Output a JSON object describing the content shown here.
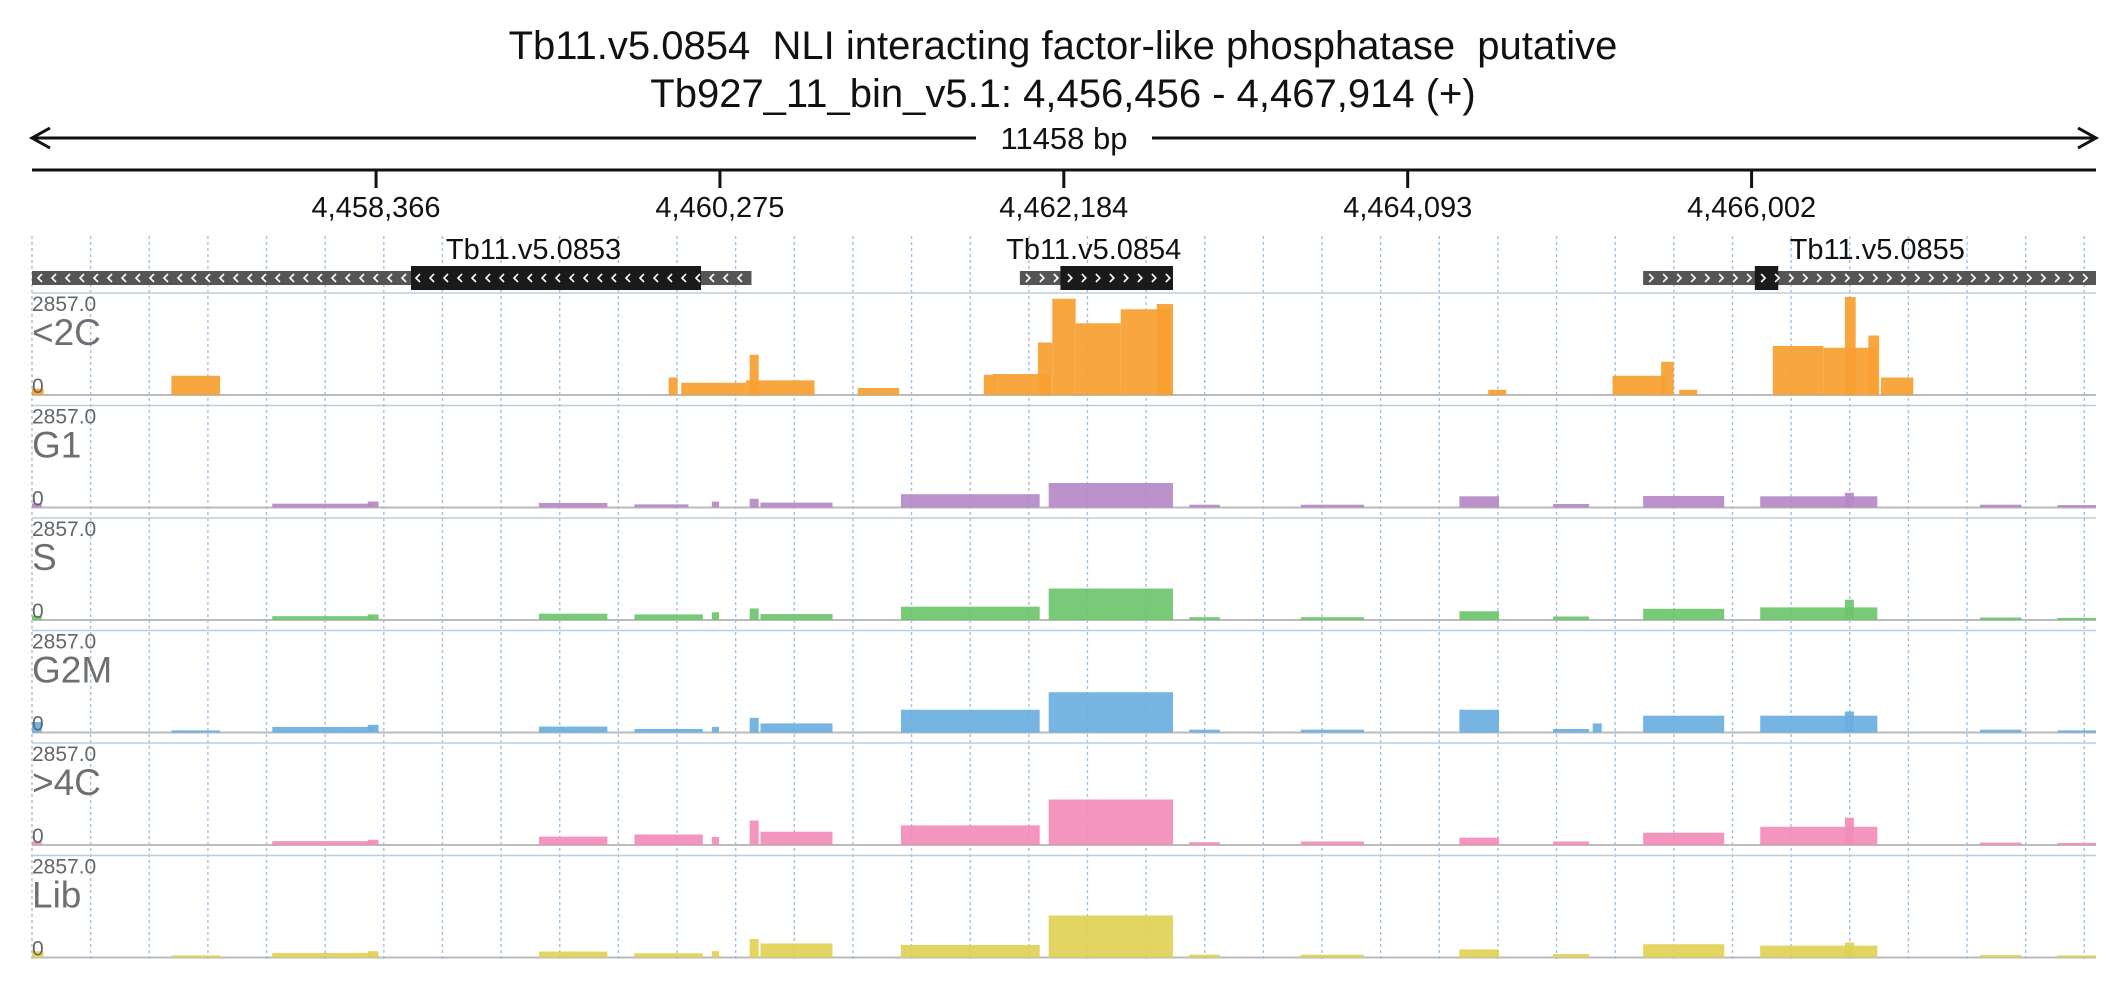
{
  "header": {
    "title": "Tb11.v5.0854  NLI interacting factor-like phosphatase  putative",
    "locus": "Tb927_11_bin_v5.1: 4,456,456 - 4,467,914 (+)",
    "span_label": "11458 bp"
  },
  "chart_data": {
    "type": "area",
    "region": {
      "start": 4456456,
      "end": 4467914
    },
    "ticks": [
      {
        "pos": 4458366,
        "label": "4,458,366"
      },
      {
        "pos": 4460275,
        "label": "4,460,275"
      },
      {
        "pos": 4462184,
        "label": "4,462,184"
      },
      {
        "pos": 4464093,
        "label": "4,464,093"
      },
      {
        "pos": 4466002,
        "label": "4,466,002"
      }
    ],
    "genes": [
      {
        "name": "Tb11.v5.0853",
        "strand": "-",
        "start": 4456456,
        "end": 4460450,
        "cds_start": 4458560,
        "cds_end": 4460170
      },
      {
        "name": "Tb11.v5.0854",
        "strand": "+",
        "start": 4461940,
        "end": 4462790,
        "cds_start": 4462165,
        "cds_end": 4462790
      },
      {
        "name": "Tb11.v5.0855",
        "strand": "+",
        "start": 4465400,
        "end": 4467914,
        "cds_start": 4466020,
        "cds_end": 4466150
      }
    ],
    "tracks": [
      {
        "name": "<2C",
        "max_label": "2857.0",
        "zero_label": "0",
        "max": 2857.0,
        "color": "#f7a030",
        "peaks": [
          {
            "start": 4456456,
            "end": 4456520,
            "value": 180
          },
          {
            "start": 4457230,
            "end": 4457500,
            "value": 550
          },
          {
            "start": 4459990,
            "end": 4460040,
            "value": 500
          },
          {
            "start": 4460060,
            "end": 4460420,
            "value": 350
          },
          {
            "start": 4460420,
            "end": 4460800,
            "value": 420
          },
          {
            "start": 4460440,
            "end": 4460490,
            "value": 1150
          },
          {
            "start": 4461040,
            "end": 4461270,
            "value": 200
          },
          {
            "start": 4461740,
            "end": 4461800,
            "value": 580
          },
          {
            "start": 4461790,
            "end": 4462110,
            "value": 600
          },
          {
            "start": 4462040,
            "end": 4462120,
            "value": 1500
          },
          {
            "start": 4462120,
            "end": 4462250,
            "value": 2750
          },
          {
            "start": 4462250,
            "end": 4462500,
            "value": 2050
          },
          {
            "start": 4462500,
            "end": 4462780,
            "value": 2450
          },
          {
            "start": 4462700,
            "end": 4462790,
            "value": 2600
          },
          {
            "start": 4464540,
            "end": 4464640,
            "value": 150
          },
          {
            "start": 4465230,
            "end": 4465520,
            "value": 550
          },
          {
            "start": 4465500,
            "end": 4465570,
            "value": 950
          },
          {
            "start": 4465600,
            "end": 4465700,
            "value": 150
          },
          {
            "start": 4466120,
            "end": 4466400,
            "value": 1400
          },
          {
            "start": 4466400,
            "end": 4466700,
            "value": 1350
          },
          {
            "start": 4466520,
            "end": 4466580,
            "value": 2800
          },
          {
            "start": 4466650,
            "end": 4466710,
            "value": 1700
          },
          {
            "start": 4466720,
            "end": 4466900,
            "value": 500
          }
        ]
      },
      {
        "name": "G1",
        "max_label": "2857.0",
        "zero_label": "0",
        "max": 2857.0,
        "color": "#b589c4",
        "peaks": [
          {
            "start": 4456456,
            "end": 4456510,
            "value": 120
          },
          {
            "start": 4457790,
            "end": 4458350,
            "value": 110
          },
          {
            "start": 4458320,
            "end": 4458380,
            "value": 170
          },
          {
            "start": 4459270,
            "end": 4459650,
            "value": 130
          },
          {
            "start": 4459800,
            "end": 4460100,
            "value": 90
          },
          {
            "start": 4460230,
            "end": 4460270,
            "value": 170
          },
          {
            "start": 4460440,
            "end": 4460490,
            "value": 250
          },
          {
            "start": 4460500,
            "end": 4460900,
            "value": 140
          },
          {
            "start": 4461280,
            "end": 4462050,
            "value": 380
          },
          {
            "start": 4462100,
            "end": 4462790,
            "value": 700
          },
          {
            "start": 4462880,
            "end": 4463050,
            "value": 80
          },
          {
            "start": 4463500,
            "end": 4463850,
            "value": 80
          },
          {
            "start": 4464380,
            "end": 4464600,
            "value": 320
          },
          {
            "start": 4464900,
            "end": 4465100,
            "value": 100
          },
          {
            "start": 4465400,
            "end": 4465850,
            "value": 330
          },
          {
            "start": 4466050,
            "end": 4466700,
            "value": 320
          },
          {
            "start": 4466520,
            "end": 4466570,
            "value": 420
          },
          {
            "start": 4467270,
            "end": 4467500,
            "value": 80
          },
          {
            "start": 4467700,
            "end": 4467914,
            "value": 70
          }
        ]
      },
      {
        "name": "S",
        "max_label": "2857.0",
        "zero_label": "0",
        "max": 2857.0,
        "color": "#6dc46c",
        "peaks": [
          {
            "start": 4456456,
            "end": 4456510,
            "value": 120
          },
          {
            "start": 4457790,
            "end": 4458350,
            "value": 110
          },
          {
            "start": 4458320,
            "end": 4458380,
            "value": 160
          },
          {
            "start": 4459270,
            "end": 4459650,
            "value": 180
          },
          {
            "start": 4459800,
            "end": 4460180,
            "value": 160
          },
          {
            "start": 4460230,
            "end": 4460270,
            "value": 220
          },
          {
            "start": 4460440,
            "end": 4460490,
            "value": 330
          },
          {
            "start": 4460500,
            "end": 4460900,
            "value": 170
          },
          {
            "start": 4461280,
            "end": 4462050,
            "value": 380
          },
          {
            "start": 4462100,
            "end": 4462790,
            "value": 900
          },
          {
            "start": 4462880,
            "end": 4463050,
            "value": 80
          },
          {
            "start": 4463500,
            "end": 4463850,
            "value": 80
          },
          {
            "start": 4464380,
            "end": 4464600,
            "value": 250
          },
          {
            "start": 4464900,
            "end": 4465100,
            "value": 100
          },
          {
            "start": 4465400,
            "end": 4465850,
            "value": 320
          },
          {
            "start": 4466050,
            "end": 4466700,
            "value": 360
          },
          {
            "start": 4466520,
            "end": 4466570,
            "value": 580
          },
          {
            "start": 4467270,
            "end": 4467500,
            "value": 70
          },
          {
            "start": 4467700,
            "end": 4467914,
            "value": 60
          }
        ]
      },
      {
        "name": "G2M",
        "max_label": "2857.0",
        "zero_label": "0",
        "max": 2857.0,
        "color": "#6aaee0",
        "peaks": [
          {
            "start": 4456456,
            "end": 4456510,
            "value": 300
          },
          {
            "start": 4457230,
            "end": 4457500,
            "value": 60
          },
          {
            "start": 4457790,
            "end": 4458350,
            "value": 160
          },
          {
            "start": 4458320,
            "end": 4458380,
            "value": 220
          },
          {
            "start": 4459270,
            "end": 4459650,
            "value": 170
          },
          {
            "start": 4459800,
            "end": 4460180,
            "value": 100
          },
          {
            "start": 4460230,
            "end": 4460270,
            "value": 160
          },
          {
            "start": 4460440,
            "end": 4460490,
            "value": 420
          },
          {
            "start": 4460500,
            "end": 4460900,
            "value": 260
          },
          {
            "start": 4461280,
            "end": 4462050,
            "value": 650
          },
          {
            "start": 4462100,
            "end": 4462790,
            "value": 1150
          },
          {
            "start": 4462880,
            "end": 4463050,
            "value": 80
          },
          {
            "start": 4463500,
            "end": 4463850,
            "value": 80
          },
          {
            "start": 4464380,
            "end": 4464600,
            "value": 650
          },
          {
            "start": 4464900,
            "end": 4465100,
            "value": 100
          },
          {
            "start": 4465120,
            "end": 4465170,
            "value": 260
          },
          {
            "start": 4465400,
            "end": 4465850,
            "value": 480
          },
          {
            "start": 4466050,
            "end": 4466700,
            "value": 480
          },
          {
            "start": 4466520,
            "end": 4466570,
            "value": 600
          },
          {
            "start": 4467270,
            "end": 4467500,
            "value": 80
          },
          {
            "start": 4467700,
            "end": 4467914,
            "value": 60
          }
        ]
      },
      {
        "name": ">4C",
        "max_label": "2857.0",
        "zero_label": "0",
        "max": 2857.0,
        "color": "#f28cba",
        "peaks": [
          {
            "start": 4456456,
            "end": 4456510,
            "value": 100
          },
          {
            "start": 4457790,
            "end": 4458350,
            "value": 110
          },
          {
            "start": 4458320,
            "end": 4458380,
            "value": 150
          },
          {
            "start": 4459270,
            "end": 4459650,
            "value": 240
          },
          {
            "start": 4459800,
            "end": 4460180,
            "value": 300
          },
          {
            "start": 4460230,
            "end": 4460270,
            "value": 230
          },
          {
            "start": 4460440,
            "end": 4460490,
            "value": 700
          },
          {
            "start": 4460500,
            "end": 4460900,
            "value": 380
          },
          {
            "start": 4461280,
            "end": 4462050,
            "value": 560
          },
          {
            "start": 4462100,
            "end": 4462790,
            "value": 1300
          },
          {
            "start": 4462880,
            "end": 4463050,
            "value": 80
          },
          {
            "start": 4463500,
            "end": 4463850,
            "value": 100
          },
          {
            "start": 4464380,
            "end": 4464600,
            "value": 210
          },
          {
            "start": 4464900,
            "end": 4465100,
            "value": 100
          },
          {
            "start": 4465400,
            "end": 4465850,
            "value": 350
          },
          {
            "start": 4466050,
            "end": 4466700,
            "value": 520
          },
          {
            "start": 4466520,
            "end": 4466570,
            "value": 780
          },
          {
            "start": 4467270,
            "end": 4467500,
            "value": 70
          },
          {
            "start": 4467700,
            "end": 4467914,
            "value": 60
          }
        ]
      },
      {
        "name": "Lib",
        "max_label": "2857.0",
        "zero_label": "0",
        "max": 2857.0,
        "color": "#dfd155",
        "peaks": [
          {
            "start": 4456456,
            "end": 4456520,
            "value": 180
          },
          {
            "start": 4457230,
            "end": 4457500,
            "value": 60
          },
          {
            "start": 4457790,
            "end": 4458350,
            "value": 130
          },
          {
            "start": 4458320,
            "end": 4458380,
            "value": 180
          },
          {
            "start": 4459270,
            "end": 4459650,
            "value": 170
          },
          {
            "start": 4459800,
            "end": 4460180,
            "value": 120
          },
          {
            "start": 4460230,
            "end": 4460270,
            "value": 180
          },
          {
            "start": 4460440,
            "end": 4460490,
            "value": 530
          },
          {
            "start": 4460500,
            "end": 4460900,
            "value": 400
          },
          {
            "start": 4461280,
            "end": 4462050,
            "value": 360
          },
          {
            "start": 4462100,
            "end": 4462790,
            "value": 1200
          },
          {
            "start": 4462880,
            "end": 4463050,
            "value": 80
          },
          {
            "start": 4463500,
            "end": 4463850,
            "value": 80
          },
          {
            "start": 4464380,
            "end": 4464600,
            "value": 230
          },
          {
            "start": 4464900,
            "end": 4465100,
            "value": 100
          },
          {
            "start": 4465400,
            "end": 4465850,
            "value": 380
          },
          {
            "start": 4466050,
            "end": 4466700,
            "value": 340
          },
          {
            "start": 4466520,
            "end": 4466570,
            "value": 430
          },
          {
            "start": 4467270,
            "end": 4467500,
            "value": 70
          },
          {
            "start": 4467700,
            "end": 4467914,
            "value": 60
          }
        ]
      }
    ]
  }
}
